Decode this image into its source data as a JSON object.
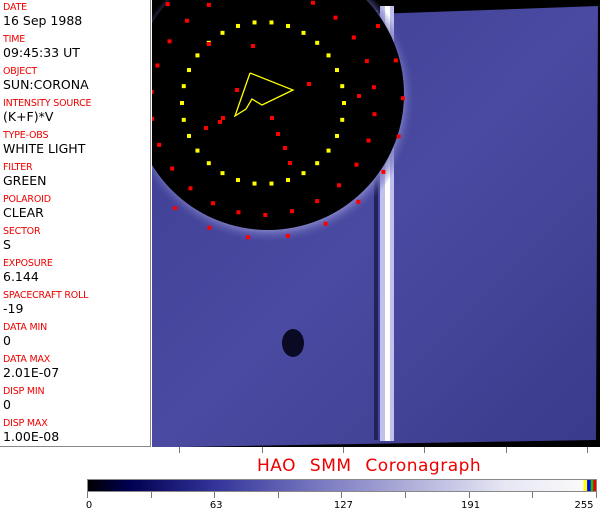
{
  "fields": [
    {
      "label": "DATE",
      "value": "16 Sep 1988"
    },
    {
      "label": "TIME",
      "value": "09:45:33 UT"
    },
    {
      "label": "OBJECT",
      "value": "SUN:CORONA"
    },
    {
      "label": "INTENSITY SOURCE",
      "value": "(K+F)*V"
    },
    {
      "label": "TYPE-OBS",
      "value": "WHITE LIGHT"
    },
    {
      "label": "FILTER",
      "value": "GREEN"
    },
    {
      "label": "POLAROID",
      "value": "CLEAR"
    },
    {
      "label": "SECTOR",
      "value": "S"
    },
    {
      "label": "EXPOSURE",
      "value": "6.144"
    },
    {
      "label": "SPACECRAFT ROLL",
      "value": "-19"
    },
    {
      "label": "DATA MIN",
      "value": "0"
    },
    {
      "label": "DATA MAX",
      "value": "2.01E-07"
    },
    {
      "label": "DISP MIN",
      "value": "0"
    },
    {
      "label": "DISP MAX",
      "value": "1.00E-08"
    }
  ],
  "title": "HAO  SMM  Coronagraph",
  "colorbar": {
    "ticks": [
      "0",
      "63",
      "127",
      "191",
      "255"
    ],
    "range": [
      0,
      255
    ],
    "colors": {
      "low": "#000000",
      "mid": "#7777c0",
      "high": "#fafafa",
      "overlay": [
        "#ffff00",
        "#0000ff",
        "#00cc00",
        "#ee0000"
      ]
    }
  },
  "colors": {
    "label": "#ee0000",
    "overlay_yellow": "#ffff00",
    "overlay_red": "#ff0000",
    "image_blue": "#4a4aa0"
  }
}
